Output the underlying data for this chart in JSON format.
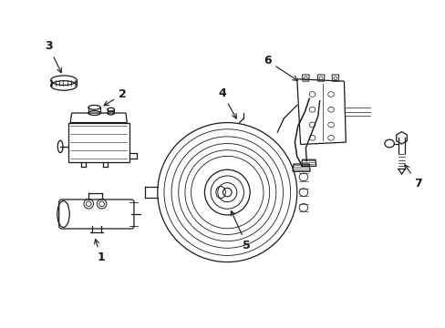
{
  "bg_color": "#ffffff",
  "line_color": "#1a1a1a",
  "figsize": [
    4.89,
    3.6
  ],
  "dpi": 100,
  "xlim": [
    0,
    10
  ],
  "ylim": [
    0,
    7.5
  ]
}
